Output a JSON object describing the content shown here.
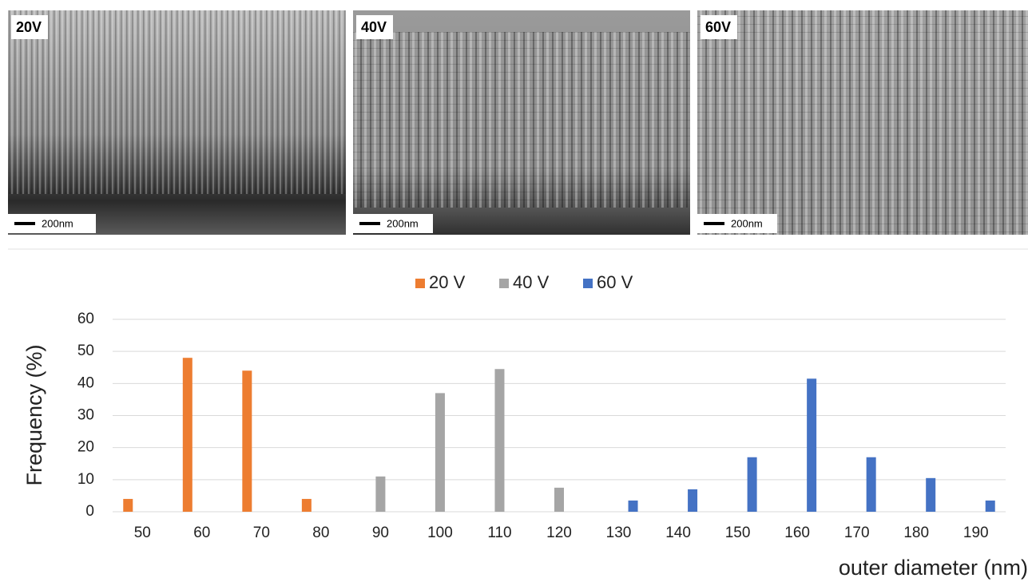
{
  "panels": [
    {
      "label": "20V",
      "scale": "200nm"
    },
    {
      "label": "40V",
      "scale": "200nm"
    },
    {
      "label": "60V",
      "scale": "200nm"
    }
  ],
  "chart_data": {
    "type": "bar",
    "y_label": "Frequency (%)",
    "x_label": "outer diameter (nm)",
    "categories": [
      "50",
      "60",
      "70",
      "80",
      "90",
      "100",
      "110",
      "120",
      "130",
      "140",
      "150",
      "160",
      "170",
      "180",
      "190"
    ],
    "series": [
      {
        "name": "20 V",
        "color": "#ed7d31",
        "values": [
          4,
          48,
          44,
          4,
          0,
          0,
          0,
          0,
          0,
          0,
          0,
          0,
          0,
          0,
          0
        ]
      },
      {
        "name": "40 V",
        "color": "#a5a5a5",
        "values": [
          0,
          0,
          0,
          0,
          11,
          37,
          44.5,
          7.5,
          0,
          0,
          0,
          0,
          0,
          0,
          0
        ]
      },
      {
        "name": "60 V",
        "color": "#4472c4",
        "values": [
          0,
          0,
          0,
          0,
          0,
          0,
          0,
          0,
          3.5,
          7,
          17,
          41.5,
          17,
          10.5,
          3.5
        ]
      }
    ],
    "ylim": [
      0,
      60
    ],
    "yticks": [
      0,
      10,
      20,
      30,
      40,
      50,
      60
    ],
    "grid": true,
    "legend": "top"
  }
}
